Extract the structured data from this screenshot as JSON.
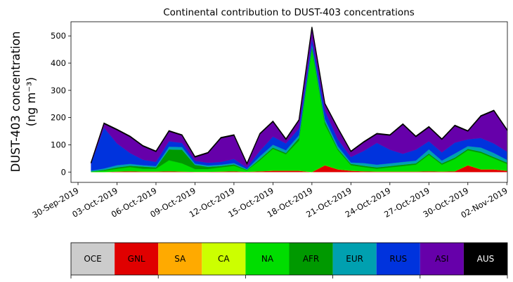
{
  "chart_data": {
    "type": "stacked_area",
    "title": "Continental contribution to DUST-403 concentrations",
    "ylabel": [
      "DUST-403 concentration",
      "(ng m⁻³)"
    ],
    "x": [
      "2019-10-01",
      "2019-10-02",
      "2019-10-03",
      "2019-10-04",
      "2019-10-05",
      "2019-10-06",
      "2019-10-07",
      "2019-10-08",
      "2019-10-09",
      "2019-10-10",
      "2019-10-11",
      "2019-10-12",
      "2019-10-13",
      "2019-10-14",
      "2019-10-15",
      "2019-10-16",
      "2019-10-17",
      "2019-10-18",
      "2019-10-19",
      "2019-10-20",
      "2019-10-21",
      "2019-10-22",
      "2019-10-23",
      "2019-10-24",
      "2019-10-25",
      "2019-10-26",
      "2019-10-27",
      "2019-10-28",
      "2019-10-29",
      "2019-10-30",
      "2019-10-31",
      "2019-11-01",
      "2019-11-02"
    ],
    "xlim": [
      "2019-09-29T11:00",
      "2019-11-02T01:00"
    ],
    "xticks": [
      {
        "value": "2019-09-30",
        "label": "30-Sep-2019"
      },
      {
        "value": "2019-10-03",
        "label": "03-Oct-2019"
      },
      {
        "value": "2019-10-06",
        "label": "06-Oct-2019"
      },
      {
        "value": "2019-10-09",
        "label": "09-Oct-2019"
      },
      {
        "value": "2019-10-12",
        "label": "12-Oct-2019"
      },
      {
        "value": "2019-10-15",
        "label": "15-Oct-2019"
      },
      {
        "value": "2019-10-18",
        "label": "18-Oct-2019"
      },
      {
        "value": "2019-10-21",
        "label": "21-Oct-2019"
      },
      {
        "value": "2019-10-24",
        "label": "24-Oct-2019"
      },
      {
        "value": "2019-10-27",
        "label": "27-Oct-2019"
      },
      {
        "value": "2019-10-30",
        "label": "30-Oct-2019"
      },
      {
        "value": "2019-11-02",
        "label": "02-Nov-2019"
      }
    ],
    "ylim": [
      -38,
      552
    ],
    "yticks": [
      0,
      100,
      200,
      300,
      400,
      500
    ],
    "series": [
      {
        "name": "OCE",
        "color": "#cccccc",
        "values": [
          0,
          0,
          0,
          0,
          0,
          0,
          0,
          0,
          0,
          0,
          0,
          0,
          0,
          0,
          0,
          0,
          0,
          0,
          0,
          0,
          0,
          0,
          0,
          0,
          0,
          0,
          0,
          0,
          0,
          0,
          0,
          0,
          0
        ]
      },
      {
        "name": "GNL",
        "color": "#e00000",
        "values": [
          0,
          0,
          2,
          3,
          2,
          2,
          3,
          2,
          1,
          1,
          2,
          3,
          1,
          3,
          5,
          5,
          5,
          0,
          25,
          10,
          5,
          3,
          2,
          2,
          2,
          2,
          3,
          2,
          3,
          25,
          10,
          10,
          5
        ]
      },
      {
        "name": "SA",
        "color": "#ffaa00",
        "values": [
          0,
          0,
          0,
          0,
          0,
          0,
          0,
          0,
          0,
          0,
          0,
          0,
          0,
          0,
          0,
          0,
          0,
          0,
          0,
          0,
          0,
          0,
          0,
          0,
          0,
          0,
          0,
          0,
          0,
          0,
          0,
          0,
          0
        ]
      },
      {
        "name": "CA",
        "color": "#ccff00",
        "values": [
          0,
          0,
          0,
          0,
          0,
          0,
          0,
          0,
          0,
          0,
          0,
          0,
          0,
          0,
          0,
          0,
          0,
          0,
          0,
          0,
          0,
          0,
          0,
          0,
          0,
          0,
          0,
          0,
          0,
          0,
          0,
          0,
          0
        ]
      },
      {
        "name": "NA",
        "color": "#00dd00",
        "values": [
          2,
          5,
          10,
          15,
          10,
          10,
          40,
          30,
          10,
          10,
          15,
          20,
          5,
          40,
          80,
          60,
          110,
          450,
          150,
          70,
          20,
          15,
          10,
          15,
          20,
          25,
          60,
          25,
          45,
          55,
          60,
          40,
          25
        ]
      },
      {
        "name": "AFR",
        "color": "#009900",
        "values": [
          0,
          3,
          5,
          5,
          8,
          5,
          40,
          50,
          15,
          8,
          5,
          5,
          2,
          5,
          5,
          5,
          10,
          10,
          10,
          5,
          5,
          5,
          5,
          5,
          5,
          5,
          5,
          5,
          5,
          5,
          5,
          5,
          5
        ]
      },
      {
        "name": "EUR",
        "color": "#00a0b0",
        "values": [
          3,
          5,
          8,
          7,
          5,
          5,
          10,
          10,
          5,
          5,
          5,
          5,
          3,
          10,
          10,
          10,
          10,
          10,
          10,
          10,
          5,
          10,
          10,
          10,
          10,
          10,
          15,
          10,
          15,
          10,
          15,
          15,
          10
        ]
      },
      {
        "name": "RUS",
        "color": "#0033dd",
        "values": [
          25,
          150,
          80,
          40,
          20,
          15,
          20,
          15,
          10,
          10,
          10,
          15,
          5,
          20,
          30,
          25,
          25,
          20,
          30,
          25,
          20,
          45,
          80,
          50,
          30,
          40,
          30,
          30,
          40,
          25,
          35,
          35,
          30
        ]
      },
      {
        "name": "ASI",
        "color": "#6600aa",
        "values": [
          3,
          15,
          50,
          60,
          50,
          38,
          37,
          28,
          14,
          36,
          88,
          87,
          14,
          62,
          55,
          15,
          30,
          40,
          25,
          40,
          20,
          32,
          33,
          53,
          108,
          48,
          52,
          48,
          62,
          30,
          80,
          120,
          80
        ]
      },
      {
        "name": "AUS",
        "color": "#000000",
        "values": [
          2,
          2,
          2,
          2,
          2,
          2,
          2,
          2,
          2,
          2,
          2,
          2,
          2,
          2,
          2,
          2,
          2,
          3,
          2,
          2,
          2,
          2,
          2,
          2,
          2,
          2,
          2,
          2,
          2,
          2,
          2,
          2,
          2
        ]
      }
    ]
  }
}
